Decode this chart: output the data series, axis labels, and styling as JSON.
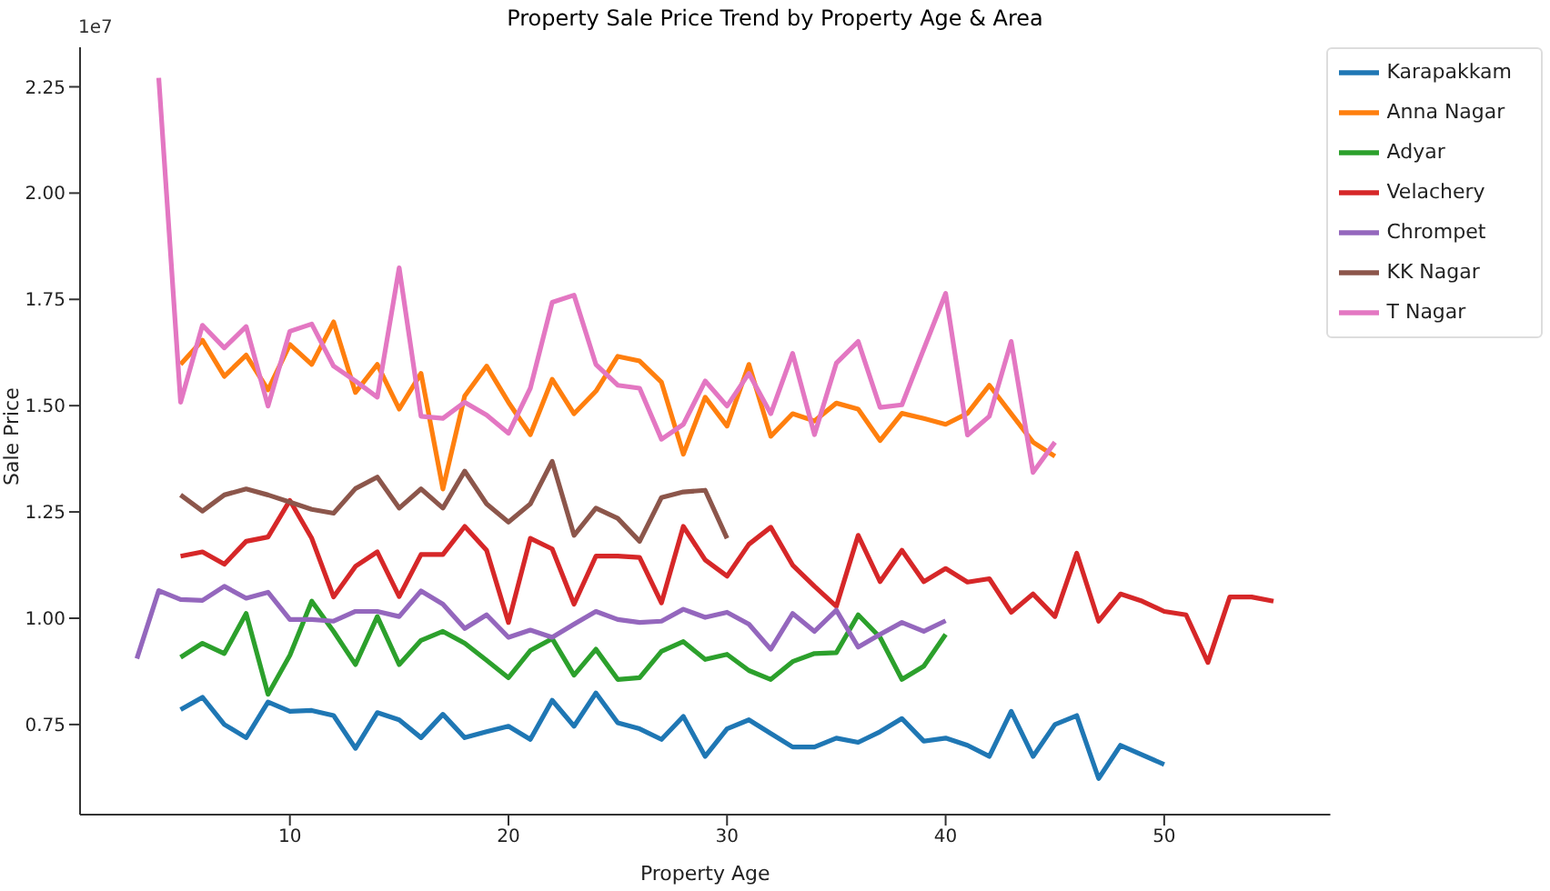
{
  "chart_data": {
    "type": "line",
    "title": "Property Sale Price Trend by Property Age & Area",
    "xlabel": "Property Age",
    "ylabel": "Sale Price",
    "annotations": [
      "1e7"
    ],
    "xlim": [
      0.4,
      57.6
    ],
    "xticks": [
      10,
      20,
      30,
      40,
      50
    ],
    "ylim": [
      0.538,
      2.343
    ],
    "yticks": [
      {
        "value": 0.75,
        "label": "0.75"
      },
      {
        "value": 1.0,
        "label": "1.00"
      },
      {
        "value": 1.25,
        "label": "1.25"
      },
      {
        "value": 1.5,
        "label": "1.50"
      },
      {
        "value": 1.75,
        "label": "1.75"
      },
      {
        "value": 2.0,
        "label": "2.00"
      },
      {
        "value": 2.25,
        "label": "2.25"
      }
    ],
    "legend": "top right",
    "series": [
      {
        "name": "Karapakkam",
        "color": "#1f77b4",
        "x": [
          5,
          6,
          7,
          8,
          9,
          10,
          11,
          12,
          13,
          14,
          15,
          16,
          17,
          18,
          19,
          20,
          21,
          22,
          23,
          24,
          25,
          26,
          27,
          28,
          29,
          30,
          31,
          32,
          33,
          34,
          35,
          36,
          37,
          38,
          39,
          40,
          41,
          42,
          43,
          44,
          45,
          46,
          47,
          48,
          50
        ],
        "values": [
          0.785,
          0.814,
          0.75,
          0.719,
          0.803,
          0.781,
          0.783,
          0.771,
          0.694,
          0.778,
          0.761,
          0.719,
          0.774,
          0.719,
          0.733,
          0.746,
          0.715,
          0.807,
          0.746,
          0.824,
          0.754,
          0.74,
          0.715,
          0.769,
          0.675,
          0.74,
          0.761,
          0.729,
          0.697,
          0.697,
          0.718,
          0.708,
          0.733,
          0.764,
          0.711,
          0.718,
          0.701,
          0.675,
          0.781,
          0.675,
          0.75,
          0.771,
          0.623,
          0.701,
          0.656
        ]
      },
      {
        "name": "Anna Nagar",
        "color": "#ff7f0e",
        "x": [
          5,
          6,
          7,
          8,
          9,
          10,
          11,
          12,
          13,
          14,
          15,
          16,
          17,
          18,
          19,
          20,
          21,
          22,
          23,
          24,
          25,
          26,
          27,
          28,
          29,
          30,
          31,
          32,
          33,
          34,
          35,
          36,
          37,
          38,
          39,
          40,
          41,
          42,
          43,
          44,
          45
        ],
        "values": [
          1.597,
          1.654,
          1.569,
          1.619,
          1.537,
          1.644,
          1.597,
          1.697,
          1.531,
          1.597,
          1.492,
          1.576,
          1.304,
          1.523,
          1.593,
          1.508,
          1.432,
          1.562,
          1.481,
          1.534,
          1.616,
          1.605,
          1.555,
          1.386,
          1.52,
          1.452,
          1.597,
          1.428,
          1.481,
          1.464,
          1.506,
          1.492,
          1.418,
          1.482,
          1.47,
          1.456,
          1.482,
          1.548,
          1.481,
          1.414,
          1.381
        ]
      },
      {
        "name": "Adyar",
        "color": "#2ca02c",
        "x": [
          5,
          6,
          7,
          8,
          9,
          10,
          11,
          12,
          13,
          14,
          15,
          16,
          17,
          18,
          19,
          20,
          21,
          22,
          23,
          24,
          25,
          26,
          27,
          28,
          29,
          30,
          31,
          32,
          33,
          34,
          35,
          36,
          37,
          38,
          39,
          40
        ],
        "values": [
          0.908,
          0.941,
          0.917,
          1.011,
          0.821,
          0.913,
          1.04,
          0.969,
          0.891,
          1.004,
          0.891,
          0.948,
          0.969,
          0.941,
          0.901,
          0.86,
          0.924,
          0.952,
          0.866,
          0.927,
          0.856,
          0.86,
          0.922,
          0.945,
          0.903,
          0.915,
          0.877,
          0.856,
          0.898,
          0.917,
          0.919,
          1.008,
          0.955,
          0.856,
          0.887,
          0.962
        ]
      },
      {
        "name": "Velachery",
        "color": "#d62728",
        "x": [
          5,
          6,
          7,
          8,
          9,
          10,
          11,
          12,
          13,
          14,
          15,
          16,
          17,
          18,
          19,
          20,
          21,
          22,
          23,
          24,
          25,
          26,
          27,
          28,
          29,
          30,
          31,
          32,
          33,
          34,
          35,
          36,
          37,
          38,
          39,
          40,
          41,
          42,
          43,
          44,
          45,
          46,
          47,
          48,
          49,
          50,
          51,
          52,
          53,
          54,
          55
        ],
        "values": [
          1.146,
          1.156,
          1.127,
          1.181,
          1.191,
          1.277,
          1.188,
          1.05,
          1.122,
          1.156,
          1.051,
          1.15,
          1.15,
          1.216,
          1.16,
          0.99,
          1.188,
          1.163,
          1.033,
          1.146,
          1.146,
          1.143,
          1.036,
          1.216,
          1.137,
          1.099,
          1.174,
          1.214,
          1.125,
          1.075,
          1.028,
          1.195,
          1.086,
          1.16,
          1.086,
          1.117,
          1.085,
          1.093,
          1.014,
          1.057,
          1.004,
          1.153,
          0.993,
          1.057,
          1.04,
          1.016,
          1.008,
          0.896,
          1.05,
          1.05,
          1.04
        ]
      },
      {
        "name": "Chrompet",
        "color": "#9467bd",
        "x": [
          3,
          4,
          5,
          6,
          7,
          8,
          9,
          10,
          11,
          12,
          13,
          14,
          15,
          16,
          17,
          18,
          19,
          20,
          21,
          22,
          23,
          24,
          25,
          26,
          27,
          28,
          29,
          30,
          31,
          32,
          33,
          34,
          35,
          36,
          37,
          38,
          39,
          40
        ],
        "values": [
          0.905,
          1.065,
          1.044,
          1.042,
          1.075,
          1.047,
          1.061,
          0.997,
          0.997,
          0.993,
          1.016,
          1.016,
          1.004,
          1.064,
          1.033,
          0.976,
          1.008,
          0.955,
          0.972,
          0.955,
          0.986,
          1.016,
          0.997,
          0.99,
          0.993,
          1.021,
          1.002,
          1.014,
          0.986,
          0.927,
          1.011,
          0.969,
          1.019,
          0.932,
          0.962,
          0.99,
          0.969,
          0.994
        ]
      },
      {
        "name": "KK Nagar",
        "color": "#8c564b",
        "x": [
          5,
          6,
          7,
          8,
          9,
          10,
          11,
          12,
          13,
          14,
          15,
          16,
          17,
          18,
          19,
          20,
          21,
          22,
          23,
          24,
          25,
          26,
          27,
          28,
          29,
          30
        ],
        "values": [
          1.29,
          1.252,
          1.29,
          1.304,
          1.29,
          1.273,
          1.256,
          1.247,
          1.305,
          1.332,
          1.259,
          1.304,
          1.259,
          1.346,
          1.269,
          1.226,
          1.269,
          1.369,
          1.195,
          1.259,
          1.235,
          1.181,
          1.284,
          1.297,
          1.301,
          1.188
        ]
      },
      {
        "name": "T Nagar",
        "color": "#e377c2",
        "x": [
          4,
          5,
          6,
          7,
          8,
          9,
          10,
          11,
          12,
          13,
          14,
          15,
          16,
          17,
          18,
          19,
          20,
          21,
          22,
          23,
          24,
          25,
          26,
          27,
          28,
          29,
          30,
          31,
          32,
          33,
          34,
          35,
          36,
          37,
          38,
          40,
          41,
          42,
          43,
          44,
          45
        ],
        "values": [
          2.271,
          1.508,
          1.689,
          1.636,
          1.686,
          1.499,
          1.675,
          1.692,
          1.593,
          1.558,
          1.52,
          1.824,
          1.475,
          1.47,
          1.508,
          1.478,
          1.435,
          1.541,
          1.743,
          1.76,
          1.597,
          1.548,
          1.541,
          1.421,
          1.456,
          1.558,
          1.499,
          1.576,
          1.481,
          1.623,
          1.432,
          1.6,
          1.651,
          1.496,
          1.502,
          1.764,
          1.431,
          1.475,
          1.651,
          1.343,
          1.414
        ]
      }
    ]
  }
}
